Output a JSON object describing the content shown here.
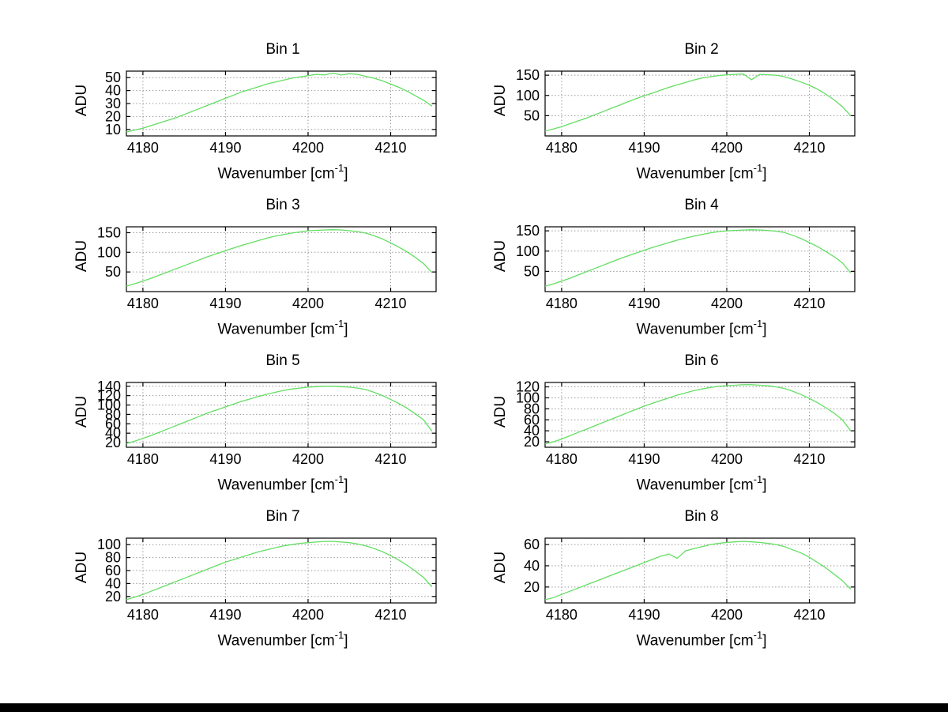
{
  "labels": {
    "ylabel": "ADU",
    "xlabel_base": "Wavenumber [cm",
    "xlabel_sup": "-1",
    "xlabel_end": "]"
  },
  "style": {
    "background": "#ffffff",
    "axis_color": "#000000",
    "grid_color": "#999999",
    "line_color": "#63de63"
  },
  "chart_data": [
    {
      "type": "line",
      "title": "Bin 1",
      "xlabel": "Wavenumber [cm^-1]",
      "ylabel": "ADU",
      "xlim": [
        4178,
        4215.5
      ],
      "ylim": [
        5,
        55
      ],
      "xticks": [
        4180,
        4190,
        4200,
        4210
      ],
      "yticks": [
        10,
        20,
        30,
        40,
        50
      ],
      "grid": true,
      "legend": false,
      "line_color": "#63de63",
      "x": [
        4178,
        4179,
        4180,
        4181,
        4182,
        4183,
        4184,
        4185,
        4186,
        4187,
        4188,
        4189,
        4190,
        4191,
        4192,
        4193,
        4194,
        4195,
        4196,
        4197,
        4198,
        4199,
        4200,
        4201,
        4202,
        4203,
        4204,
        4205,
        4206,
        4207,
        4208,
        4209,
        4210,
        4211,
        4212,
        4213,
        4214,
        4215
      ],
      "y": [
        8,
        9.5,
        11,
        13,
        15,
        17,
        19,
        21.5,
        24,
        26.5,
        29,
        31.5,
        34,
        36.5,
        39,
        41,
        43,
        45,
        46.5,
        48,
        49.5,
        50.5,
        51.5,
        52.5,
        52,
        53.5,
        52,
        53,
        52.5,
        51,
        49.5,
        47.5,
        45,
        42.5,
        39.5,
        36,
        32.5,
        28
      ]
    },
    {
      "type": "line",
      "title": "Bin 2",
      "xlabel": "Wavenumber [cm^-1]",
      "ylabel": "ADU",
      "xlim": [
        4178,
        4215.5
      ],
      "ylim": [
        0,
        160
      ],
      "xticks": [
        4180,
        4190,
        4200,
        4210
      ],
      "yticks": [
        50,
        100,
        150
      ],
      "grid": true,
      "legend": false,
      "line_color": "#63de63",
      "x": [
        4178,
        4179,
        4180,
        4181,
        4182,
        4183,
        4184,
        4185,
        4186,
        4187,
        4188,
        4189,
        4190,
        4191,
        4192,
        4193,
        4194,
        4195,
        4196,
        4197,
        4198,
        4199,
        4200,
        4201,
        4202,
        4203,
        4204,
        4205,
        4206,
        4207,
        4208,
        4209,
        4210,
        4211,
        4212,
        4213,
        4214,
        4215
      ],
      "y": [
        12,
        17,
        23,
        30,
        37,
        44,
        52,
        60,
        68,
        76,
        84,
        92,
        99,
        106,
        113,
        120,
        126,
        132,
        138,
        143,
        146,
        149,
        151,
        152,
        153,
        139,
        152,
        151,
        150,
        146,
        140,
        133,
        125,
        115,
        103,
        89,
        72,
        50
      ]
    },
    {
      "type": "line",
      "title": "Bin 3",
      "xlabel": "Wavenumber [cm^-1]",
      "ylabel": "ADU",
      "xlim": [
        4178,
        4215.5
      ],
      "ylim": [
        0,
        165
      ],
      "xticks": [
        4180,
        4190,
        4200,
        4210
      ],
      "yticks": [
        50,
        100,
        150
      ],
      "grid": true,
      "legend": false,
      "line_color": "#63de63",
      "x": [
        4178,
        4179,
        4180,
        4181,
        4182,
        4183,
        4184,
        4185,
        4186,
        4187,
        4188,
        4189,
        4190,
        4191,
        4192,
        4193,
        4194,
        4195,
        4196,
        4197,
        4198,
        4199,
        4200,
        4201,
        4202,
        4203,
        4204,
        4205,
        4206,
        4207,
        4208,
        4209,
        4210,
        4211,
        4212,
        4213,
        4214,
        4215
      ],
      "y": [
        14,
        20,
        27,
        34,
        42,
        50,
        58,
        66,
        74,
        82,
        90,
        97,
        104,
        111,
        118,
        124,
        130,
        136,
        141,
        145,
        149,
        152,
        155,
        156,
        157,
        157.5,
        157,
        155,
        153,
        149,
        142,
        134,
        124,
        113,
        101,
        87,
        71,
        48
      ]
    },
    {
      "type": "line",
      "title": "Bin 4",
      "xlabel": "Wavenumber [cm^-1]",
      "ylabel": "ADU",
      "xlim": [
        4178,
        4215.5
      ],
      "ylim": [
        0,
        160
      ],
      "xticks": [
        4180,
        4190,
        4200,
        4210
      ],
      "yticks": [
        50,
        100,
        150
      ],
      "grid": true,
      "legend": false,
      "line_color": "#63de63",
      "x": [
        4178,
        4179,
        4180,
        4181,
        4182,
        4183,
        4184,
        4185,
        4186,
        4187,
        4188,
        4189,
        4190,
        4191,
        4192,
        4193,
        4194,
        4195,
        4196,
        4197,
        4198,
        4199,
        4200,
        4201,
        4202,
        4203,
        4204,
        4205,
        4206,
        4207,
        4208,
        4209,
        4210,
        4211,
        4212,
        4213,
        4214,
        4215
      ],
      "y": [
        13,
        19,
        26,
        33,
        41,
        49,
        57,
        65,
        73,
        81,
        88,
        95,
        102,
        109,
        115,
        121,
        127,
        132,
        137,
        141,
        145,
        148,
        150,
        151,
        152,
        152.5,
        152,
        151,
        149,
        146,
        139,
        131,
        121,
        111,
        99,
        86,
        71,
        46
      ]
    },
    {
      "type": "line",
      "title": "Bin 5",
      "xlabel": "Wavenumber [cm^-1]",
      "ylabel": "ADU",
      "xlim": [
        4178,
        4215.5
      ],
      "ylim": [
        10,
        148
      ],
      "xticks": [
        4180,
        4190,
        4200,
        4210
      ],
      "yticks": [
        20,
        40,
        60,
        80,
        100,
        120,
        140
      ],
      "grid": true,
      "legend": false,
      "line_color": "#63de63",
      "x": [
        4178,
        4179,
        4180,
        4181,
        4182,
        4183,
        4184,
        4185,
        4186,
        4187,
        4188,
        4189,
        4190,
        4191,
        4192,
        4193,
        4194,
        4195,
        4196,
        4197,
        4198,
        4199,
        4200,
        4201,
        4202,
        4203,
        4204,
        4205,
        4206,
        4207,
        4208,
        4209,
        4210,
        4211,
        4212,
        4213,
        4214,
        4215
      ],
      "y": [
        18,
        23,
        29,
        35,
        42,
        49,
        56,
        63,
        70,
        77,
        84,
        90,
        96,
        102,
        108,
        113,
        118,
        123,
        127,
        131,
        134,
        136,
        138,
        139,
        140,
        140,
        139,
        138,
        136,
        133,
        127,
        120,
        112,
        103,
        93,
        81,
        68,
        44
      ]
    },
    {
      "type": "line",
      "title": "Bin 6",
      "xlabel": "Wavenumber [cm^-1]",
      "ylabel": "ADU",
      "xlim": [
        4178,
        4215.5
      ],
      "ylim": [
        10,
        128
      ],
      "xticks": [
        4180,
        4190,
        4200,
        4210
      ],
      "yticks": [
        20,
        40,
        60,
        80,
        100,
        120
      ],
      "grid": true,
      "legend": false,
      "line_color": "#63de63",
      "x": [
        4178,
        4179,
        4180,
        4181,
        4182,
        4183,
        4184,
        4185,
        4186,
        4187,
        4188,
        4189,
        4190,
        4191,
        4192,
        4193,
        4194,
        4195,
        4196,
        4197,
        4198,
        4199,
        4200,
        4201,
        4202,
        4203,
        4204,
        4205,
        4206,
        4207,
        4208,
        4209,
        4210,
        4211,
        4212,
        4213,
        4214,
        4215
      ],
      "y": [
        16,
        20,
        25,
        31,
        37,
        43,
        49,
        55,
        61,
        67,
        73,
        79,
        85,
        90,
        95,
        100,
        105,
        109,
        113,
        116,
        119,
        121,
        122,
        123,
        124,
        124,
        123,
        122,
        120,
        117,
        112,
        106,
        99,
        91,
        82,
        72,
        60,
        40
      ]
    },
    {
      "type": "line",
      "title": "Bin 7",
      "xlabel": "Wavenumber [cm^-1]",
      "ylabel": "ADU",
      "xlim": [
        4178,
        4215.5
      ],
      "ylim": [
        10,
        110
      ],
      "xticks": [
        4180,
        4190,
        4200,
        4210
      ],
      "yticks": [
        20,
        40,
        60,
        80,
        100
      ],
      "grid": true,
      "legend": false,
      "line_color": "#63de63",
      "x": [
        4178,
        4179,
        4180,
        4181,
        4182,
        4183,
        4184,
        4185,
        4186,
        4187,
        4188,
        4189,
        4190,
        4191,
        4192,
        4193,
        4194,
        4195,
        4196,
        4197,
        4198,
        4199,
        4200,
        4201,
        4202,
        4203,
        4204,
        4205,
        4206,
        4207,
        4208,
        4209,
        4210,
        4211,
        4212,
        4213,
        4214,
        4215
      ],
      "y": [
        15,
        19,
        23,
        28,
        33,
        38,
        43,
        48,
        53,
        58,
        63,
        68,
        73,
        77,
        81,
        85,
        89,
        92,
        95,
        98,
        100,
        102,
        103,
        104,
        105,
        105,
        104,
        103,
        101,
        98,
        94,
        89,
        83,
        76,
        68,
        59,
        49,
        35
      ]
    },
    {
      "type": "line",
      "title": "Bin 8",
      "xlabel": "Wavenumber [cm^-1]",
      "ylabel": "ADU",
      "xlim": [
        4178,
        4215.5
      ],
      "ylim": [
        5,
        66
      ],
      "xticks": [
        4180,
        4190,
        4200,
        4210
      ],
      "yticks": [
        20,
        40,
        60
      ],
      "grid": true,
      "legend": false,
      "line_color": "#63de63",
      "x": [
        4178,
        4179,
        4180,
        4181,
        4182,
        4183,
        4184,
        4185,
        4186,
        4187,
        4188,
        4189,
        4190,
        4191,
        4192,
        4193,
        4194,
        4195,
        4196,
        4197,
        4198,
        4199,
        4200,
        4201,
        4202,
        4203,
        4204,
        4205,
        4206,
        4207,
        4208,
        4209,
        4210,
        4211,
        4212,
        4213,
        4214,
        4215
      ],
      "y": [
        8,
        10,
        13,
        16,
        19,
        22,
        25,
        28,
        31,
        34,
        37,
        40,
        43,
        46,
        49,
        51,
        47,
        54,
        56,
        58,
        60,
        61,
        62,
        62.5,
        63,
        62.5,
        62,
        61,
        60,
        58,
        55,
        52,
        48,
        43,
        38,
        32,
        26,
        18
      ]
    }
  ]
}
